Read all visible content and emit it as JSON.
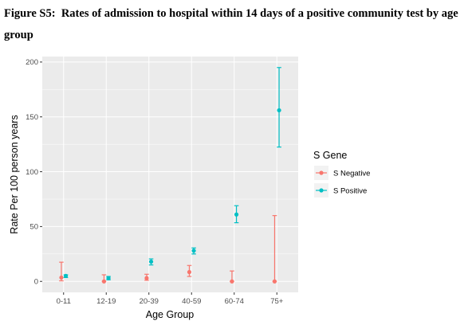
{
  "caption": {
    "label": "Figure S5:",
    "text": "Rates of admission to hospital within 14 days of a positive community test by age group"
  },
  "chart_data": {
    "type": "scatter",
    "subtype": "point-with-error-bars",
    "xlabel": "Age Group",
    "ylabel": "Rate Per 100 person years",
    "categories": [
      "0-11",
      "12-19",
      "20-39",
      "40-59",
      "60-74",
      "75+"
    ],
    "ylim": [
      -10,
      205
    ],
    "yticks": [
      0,
      50,
      100,
      150,
      200
    ],
    "grid": true,
    "legend": {
      "title": "S Gene",
      "position": "right"
    },
    "series": [
      {
        "name": "S Negative",
        "color": "#F8766D",
        "values": [
          3.5,
          0,
          3,
          8.5,
          0,
          0
        ],
        "lower": [
          0.5,
          0,
          1,
          4.5,
          0,
          0
        ],
        "upper": [
          17.5,
          6,
          6.5,
          14.5,
          9.5,
          60
        ]
      },
      {
        "name": "S Positive",
        "color": "#00BFC4",
        "values": [
          5,
          3,
          18,
          28,
          61,
          156
        ],
        "lower": [
          3.5,
          1.5,
          15,
          25,
          53.5,
          122.5
        ],
        "upper": [
          6,
          4.5,
          20.5,
          30.5,
          69,
          195
        ]
      }
    ]
  }
}
